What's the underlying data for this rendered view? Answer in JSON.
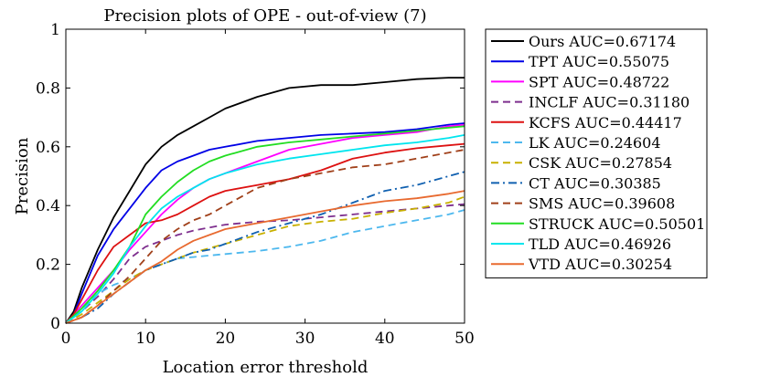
{
  "chart_data": {
    "type": "line",
    "title": "Precision plots of OPE - out-of-view (7)",
    "xlabel": "Location error threshold",
    "ylabel": "Precision",
    "xlim": [
      0,
      50
    ],
    "ylim": [
      0,
      1
    ],
    "xticks": [
      "0",
      "10",
      "20",
      "30",
      "40",
      "50"
    ],
    "yticks": [
      "0",
      "0.2",
      "0.4",
      "0.6",
      "0.8",
      "1"
    ],
    "legend_position": "outside-right",
    "series": [
      {
        "name": "Ours",
        "label": "Ours AUC=0.67174",
        "color": "#000000",
        "dash": "solid",
        "points": [
          [
            0,
            0
          ],
          [
            1,
            0.04
          ],
          [
            2,
            0.12
          ],
          [
            4,
            0.25
          ],
          [
            6,
            0.36
          ],
          [
            8,
            0.45
          ],
          [
            10,
            0.54
          ],
          [
            12,
            0.6
          ],
          [
            14,
            0.64
          ],
          [
            16,
            0.67
          ],
          [
            18,
            0.7
          ],
          [
            20,
            0.73
          ],
          [
            24,
            0.77
          ],
          [
            28,
            0.8
          ],
          [
            32,
            0.81
          ],
          [
            36,
            0.81
          ],
          [
            40,
            0.82
          ],
          [
            44,
            0.83
          ],
          [
            48,
            0.835
          ],
          [
            50,
            0.835
          ]
        ]
      },
      {
        "name": "TPT",
        "label": "TPT AUC=0.55075",
        "color": "#0000e6",
        "dash": "solid",
        "points": [
          [
            0,
            0
          ],
          [
            1,
            0.03
          ],
          [
            2,
            0.1
          ],
          [
            4,
            0.23
          ],
          [
            6,
            0.32
          ],
          [
            8,
            0.39
          ],
          [
            10,
            0.46
          ],
          [
            12,
            0.52
          ],
          [
            14,
            0.55
          ],
          [
            16,
            0.57
          ],
          [
            18,
            0.59
          ],
          [
            20,
            0.6
          ],
          [
            24,
            0.62
          ],
          [
            28,
            0.63
          ],
          [
            32,
            0.64
          ],
          [
            36,
            0.645
          ],
          [
            40,
            0.65
          ],
          [
            44,
            0.66
          ],
          [
            48,
            0.675
          ],
          [
            50,
            0.68
          ]
        ]
      },
      {
        "name": "SPT",
        "label": "SPT AUC=0.48722",
        "color": "#ff00ff",
        "dash": "solid",
        "points": [
          [
            0,
            0
          ],
          [
            2,
            0.06
          ],
          [
            4,
            0.12
          ],
          [
            6,
            0.18
          ],
          [
            8,
            0.25
          ],
          [
            10,
            0.31
          ],
          [
            12,
            0.37
          ],
          [
            14,
            0.42
          ],
          [
            16,
            0.46
          ],
          [
            18,
            0.49
          ],
          [
            20,
            0.51
          ],
          [
            24,
            0.55
          ],
          [
            28,
            0.59
          ],
          [
            32,
            0.61
          ],
          [
            36,
            0.63
          ],
          [
            40,
            0.64
          ],
          [
            44,
            0.65
          ],
          [
            48,
            0.67
          ],
          [
            50,
            0.675
          ]
        ]
      },
      {
        "name": "INCLF",
        "label": "INCLF AUC=0.31180",
        "color": "#7e2f8e",
        "dash": "dash",
        "points": [
          [
            0,
            0
          ],
          [
            2,
            0.04
          ],
          [
            4,
            0.09
          ],
          [
            6,
            0.15
          ],
          [
            8,
            0.22
          ],
          [
            10,
            0.26
          ],
          [
            12,
            0.28
          ],
          [
            14,
            0.3
          ],
          [
            16,
            0.315
          ],
          [
            18,
            0.325
          ],
          [
            20,
            0.335
          ],
          [
            24,
            0.345
          ],
          [
            28,
            0.35
          ],
          [
            32,
            0.36
          ],
          [
            36,
            0.37
          ],
          [
            40,
            0.38
          ],
          [
            44,
            0.39
          ],
          [
            48,
            0.4
          ],
          [
            50,
            0.405
          ]
        ]
      },
      {
        "name": "KCFS",
        "label": "KCFS AUC=0.44417",
        "color": "#dd1111",
        "dash": "solid",
        "points": [
          [
            0,
            0
          ],
          [
            1,
            0.03
          ],
          [
            2,
            0.08
          ],
          [
            4,
            0.18
          ],
          [
            6,
            0.26
          ],
          [
            8,
            0.3
          ],
          [
            10,
            0.34
          ],
          [
            12,
            0.35
          ],
          [
            14,
            0.37
          ],
          [
            16,
            0.4
          ],
          [
            18,
            0.43
          ],
          [
            20,
            0.45
          ],
          [
            24,
            0.47
          ],
          [
            28,
            0.49
          ],
          [
            32,
            0.52
          ],
          [
            36,
            0.56
          ],
          [
            40,
            0.58
          ],
          [
            44,
            0.595
          ],
          [
            48,
            0.605
          ],
          [
            50,
            0.61
          ]
        ]
      },
      {
        "name": "LK",
        "label": "LK AUC=0.24604",
        "color": "#4db8ee",
        "dash": "dash",
        "points": [
          [
            0,
            0
          ],
          [
            2,
            0.05
          ],
          [
            4,
            0.1
          ],
          [
            6,
            0.13
          ],
          [
            8,
            0.15
          ],
          [
            10,
            0.18
          ],
          [
            12,
            0.2
          ],
          [
            14,
            0.22
          ],
          [
            16,
            0.225
          ],
          [
            18,
            0.23
          ],
          [
            20,
            0.235
          ],
          [
            24,
            0.245
          ],
          [
            28,
            0.26
          ],
          [
            32,
            0.28
          ],
          [
            36,
            0.31
          ],
          [
            40,
            0.33
          ],
          [
            44,
            0.35
          ],
          [
            48,
            0.37
          ],
          [
            50,
            0.385
          ]
        ]
      },
      {
        "name": "CSK",
        "label": "CSK AUC=0.27854",
        "color": "#c8b000",
        "dash": "dash",
        "points": [
          [
            0,
            0
          ],
          [
            2,
            0.03
          ],
          [
            4,
            0.07
          ],
          [
            6,
            0.11
          ],
          [
            8,
            0.15
          ],
          [
            10,
            0.18
          ],
          [
            12,
            0.2
          ],
          [
            14,
            0.22
          ],
          [
            16,
            0.24
          ],
          [
            18,
            0.255
          ],
          [
            20,
            0.27
          ],
          [
            24,
            0.3
          ],
          [
            28,
            0.33
          ],
          [
            32,
            0.345
          ],
          [
            36,
            0.355
          ],
          [
            40,
            0.375
          ],
          [
            44,
            0.39
          ],
          [
            48,
            0.41
          ],
          [
            50,
            0.43
          ]
        ]
      },
      {
        "name": "CT",
        "label": "CT AUC=0.30385",
        "color": "#1060b0",
        "dash": "dashdot",
        "points": [
          [
            0,
            0
          ],
          [
            2,
            0.02
          ],
          [
            4,
            0.05
          ],
          [
            6,
            0.1
          ],
          [
            8,
            0.14
          ],
          [
            10,
            0.18
          ],
          [
            12,
            0.2
          ],
          [
            14,
            0.22
          ],
          [
            16,
            0.24
          ],
          [
            18,
            0.25
          ],
          [
            20,
            0.27
          ],
          [
            24,
            0.31
          ],
          [
            28,
            0.34
          ],
          [
            32,
            0.37
          ],
          [
            36,
            0.41
          ],
          [
            40,
            0.45
          ],
          [
            44,
            0.47
          ],
          [
            48,
            0.5
          ],
          [
            50,
            0.515
          ]
        ]
      },
      {
        "name": "SMS",
        "label": "SMS AUC=0.39608",
        "color": "#a0401a",
        "dash": "dash",
        "points": [
          [
            0,
            0
          ],
          [
            2,
            0.02
          ],
          [
            4,
            0.06
          ],
          [
            6,
            0.11
          ],
          [
            8,
            0.16
          ],
          [
            10,
            0.22
          ],
          [
            12,
            0.28
          ],
          [
            14,
            0.32
          ],
          [
            16,
            0.35
          ],
          [
            18,
            0.37
          ],
          [
            20,
            0.4
          ],
          [
            24,
            0.46
          ],
          [
            28,
            0.49
          ],
          [
            32,
            0.51
          ],
          [
            36,
            0.53
          ],
          [
            40,
            0.54
          ],
          [
            44,
            0.56
          ],
          [
            48,
            0.58
          ],
          [
            50,
            0.59
          ]
        ]
      },
      {
        "name": "STRUCK",
        "label": "STRUCK AUC=0.50501",
        "color": "#22dd22",
        "dash": "solid",
        "points": [
          [
            0,
            0
          ],
          [
            2,
            0.05
          ],
          [
            4,
            0.11
          ],
          [
            6,
            0.18
          ],
          [
            8,
            0.26
          ],
          [
            10,
            0.37
          ],
          [
            12,
            0.43
          ],
          [
            14,
            0.48
          ],
          [
            16,
            0.52
          ],
          [
            18,
            0.55
          ],
          [
            20,
            0.57
          ],
          [
            24,
            0.6
          ],
          [
            28,
            0.615
          ],
          [
            32,
            0.625
          ],
          [
            36,
            0.635
          ],
          [
            40,
            0.645
          ],
          [
            44,
            0.655
          ],
          [
            48,
            0.665
          ],
          [
            50,
            0.67
          ]
        ]
      },
      {
        "name": "TLD",
        "label": "TLD AUC=0.46926",
        "color": "#00e5ee",
        "dash": "solid",
        "points": [
          [
            0,
            0
          ],
          [
            2,
            0.04
          ],
          [
            4,
            0.1
          ],
          [
            6,
            0.17
          ],
          [
            8,
            0.26
          ],
          [
            10,
            0.33
          ],
          [
            12,
            0.39
          ],
          [
            14,
            0.43
          ],
          [
            16,
            0.46
          ],
          [
            18,
            0.49
          ],
          [
            20,
            0.51
          ],
          [
            24,
            0.54
          ],
          [
            28,
            0.56
          ],
          [
            32,
            0.575
          ],
          [
            36,
            0.59
          ],
          [
            40,
            0.605
          ],
          [
            44,
            0.615
          ],
          [
            48,
            0.63
          ],
          [
            50,
            0.64
          ]
        ]
      },
      {
        "name": "VTD",
        "label": "VTD AUC=0.30254",
        "color": "#e86a30",
        "dash": "solid",
        "points": [
          [
            0,
            0
          ],
          [
            2,
            0.02
          ],
          [
            4,
            0.06
          ],
          [
            6,
            0.1
          ],
          [
            8,
            0.14
          ],
          [
            10,
            0.18
          ],
          [
            12,
            0.21
          ],
          [
            14,
            0.25
          ],
          [
            16,
            0.28
          ],
          [
            18,
            0.3
          ],
          [
            20,
            0.32
          ],
          [
            24,
            0.34
          ],
          [
            28,
            0.36
          ],
          [
            32,
            0.38
          ],
          [
            36,
            0.4
          ],
          [
            40,
            0.415
          ],
          [
            44,
            0.425
          ],
          [
            48,
            0.44
          ],
          [
            50,
            0.45
          ]
        ]
      }
    ]
  }
}
